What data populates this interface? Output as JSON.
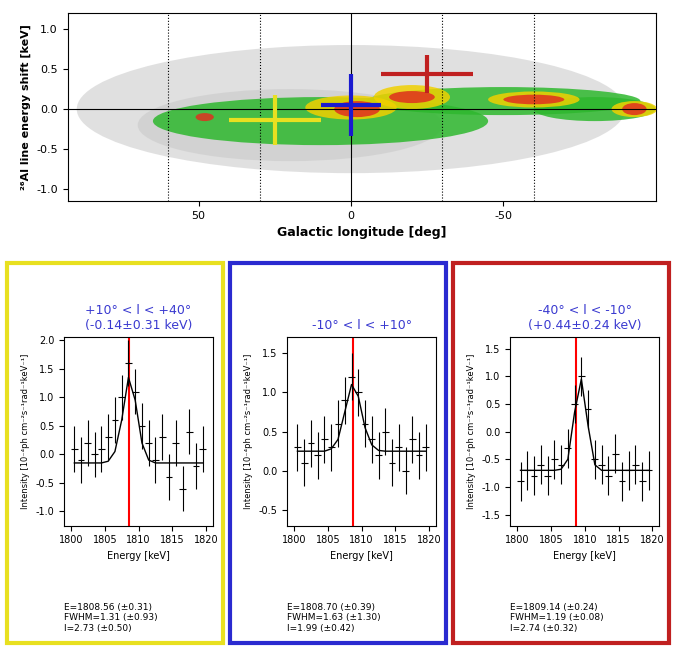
{
  "chart_data": [
    {
      "type": "map",
      "xlabel": "Galactic longitude [deg]",
      "ylabel": "²⁶Al line energy shift [keV]",
      "xlim": [
        93,
        -100
      ],
      "xticks": [
        50,
        0,
        -50
      ],
      "ylim": [
        -1.15,
        1.2
      ],
      "yticks": [
        -1.0,
        -0.5,
        0.0,
        0.5,
        1.0
      ],
      "reference_lines": [
        60,
        30,
        -30,
        -60
      ],
      "emission": {
        "colors": [
          "#c8c8c8",
          "#2eb82e",
          "#f0d000",
          "#e03020"
        ],
        "blobs": [
          {
            "l": 0,
            "shift": 0.0,
            "dl": 180,
            "dshift": 1.6,
            "level": 1
          },
          {
            "l": 20,
            "shift": -0.2,
            "dl": 100,
            "dshift": 0.9,
            "level": 1
          },
          {
            "l": 10,
            "shift": -0.15,
            "dl": 110,
            "dshift": 0.6,
            "level": 2
          },
          {
            "l": -50,
            "shift": 0.1,
            "dl": 90,
            "dshift": 0.35,
            "level": 2
          },
          {
            "l": -80,
            "shift": 0.0,
            "dl": 40,
            "dshift": 0.3,
            "level": 2
          },
          {
            "l": 0,
            "shift": 0.02,
            "dl": 30,
            "dshift": 0.3,
            "level": 3
          },
          {
            "l": -20,
            "shift": 0.15,
            "dl": 25,
            "dshift": 0.3,
            "level": 3
          },
          {
            "l": -60,
            "shift": 0.12,
            "dl": 30,
            "dshift": 0.2,
            "level": 3
          },
          {
            "l": -93,
            "shift": 0.0,
            "dl": 15,
            "dshift": 0.2,
            "level": 3
          },
          {
            "l": -2,
            "shift": 0.0,
            "dl": 15,
            "dshift": 0.2,
            "level": 4
          },
          {
            "l": -20,
            "shift": 0.15,
            "dl": 15,
            "dshift": 0.15,
            "level": 4
          },
          {
            "l": -60,
            "shift": 0.12,
            "dl": 20,
            "dshift": 0.12,
            "level": 4
          },
          {
            "l": -93,
            "shift": 0.0,
            "dl": 8,
            "dshift": 0.15,
            "level": 4
          },
          {
            "l": 48,
            "shift": -0.1,
            "dl": 6,
            "dshift": 0.1,
            "level": 4
          }
        ]
      },
      "series": [
        {
          "color": "#e8e020",
          "l_range": [
            10,
            40
          ],
          "shift": -0.14,
          "shift_error": 0.31
        },
        {
          "color": "#1a1ad0",
          "l_range": [
            -10,
            10
          ],
          "shift": 0.05,
          "shift_error": 0.39
        },
        {
          "color": "#c02020",
          "l_range": [
            -40,
            -10
          ],
          "shift": 0.44,
          "shift_error": 0.24
        }
      ]
    },
    {
      "type": "spectrum",
      "color": "#e8e020",
      "title": "+10° < l < +40°",
      "subtitle": "(-0.14±0.31 keV)",
      "fit_text": [
        "E=1808.56 (±0.31)",
        "FWHM=1.31 (±0.93)",
        "I=2.73 (±0.50)"
      ],
      "xlabel": "Energy [keV]",
      "ylabel": "Intensity [10⁻⁴ph cm⁻²s⁻¹rad⁻¹keV⁻¹]",
      "xlim": [
        1799,
        1821
      ],
      "xticks": [
        1800,
        1805,
        1810,
        1815,
        1820
      ],
      "ylim": [
        -1.25,
        2.05
      ],
      "yticks": [
        -1.0,
        -0.5,
        0.0,
        0.5,
        1.0,
        1.5,
        2.0
      ],
      "reference_energy": 1808.65,
      "x": [
        1800.5,
        1801.5,
        1802.5,
        1803.5,
        1804.5,
        1805.5,
        1806.5,
        1807.5,
        1808.5,
        1809.5,
        1810.5,
        1811.5,
        1812.5,
        1813.5,
        1814.5,
        1815.5,
        1816.5,
        1817.5,
        1818.5,
        1819.5
      ],
      "values": [
        0.1,
        -0.1,
        0.2,
        0.0,
        0.1,
        0.3,
        0.6,
        1.0,
        1.6,
        1.1,
        0.5,
        0.2,
        -0.1,
        0.3,
        -0.4,
        0.2,
        -0.6,
        0.4,
        -0.2,
        0.1
      ],
      "errors": [
        0.4,
        0.4,
        0.4,
        0.4,
        0.4,
        0.4,
        0.4,
        0.4,
        0.4,
        0.4,
        0.4,
        0.4,
        0.4,
        0.4,
        0.4,
        0.4,
        0.4,
        0.4,
        0.4,
        0.4
      ],
      "fit": [
        -0.15,
        -0.15,
        -0.15,
        -0.15,
        -0.15,
        -0.12,
        0.05,
        0.6,
        1.35,
        0.95,
        0.2,
        -0.1,
        -0.15,
        -0.15,
        -0.15,
        -0.15,
        -0.15,
        -0.15,
        -0.15,
        -0.15
      ]
    },
    {
      "type": "spectrum",
      "color": "#2a2ad0",
      "title": "-10° < l < +10°",
      "fit_text": [
        "E=1808.70 (±0.39)",
        "FWHM=1.63 (±1.30)",
        "I=1.99 (±0.42)"
      ],
      "xlabel": "Energy [keV]",
      "ylabel": "Intensity [10⁻⁴ph cm⁻²s⁻¹rad⁻¹keV⁻¹]",
      "xlim": [
        1799,
        1821
      ],
      "xticks": [
        1800,
        1805,
        1810,
        1815,
        1820
      ],
      "ylim": [
        -0.7,
        1.7
      ],
      "yticks": [
        -0.5,
        0.0,
        0.5,
        1.0,
        1.5
      ],
      "reference_energy": 1808.65,
      "x": [
        1800.5,
        1801.5,
        1802.5,
        1803.5,
        1804.5,
        1805.5,
        1806.5,
        1807.5,
        1808.5,
        1809.5,
        1810.5,
        1811.5,
        1812.5,
        1813.5,
        1814.5,
        1815.5,
        1816.5,
        1817.5,
        1818.5,
        1819.5
      ],
      "values": [
        0.3,
        0.1,
        0.35,
        0.2,
        0.4,
        0.3,
        0.6,
        0.9,
        1.2,
        1.0,
        0.6,
        0.4,
        0.2,
        0.5,
        0.1,
        0.3,
        0.0,
        0.4,
        0.2,
        0.3
      ],
      "errors": [
        0.3,
        0.3,
        0.3,
        0.3,
        0.3,
        0.3,
        0.3,
        0.3,
        0.3,
        0.3,
        0.3,
        0.3,
        0.3,
        0.3,
        0.3,
        0.3,
        0.3,
        0.3,
        0.3,
        0.3
      ],
      "fit": [
        0.25,
        0.25,
        0.25,
        0.25,
        0.25,
        0.28,
        0.4,
        0.75,
        1.1,
        0.95,
        0.55,
        0.33,
        0.26,
        0.25,
        0.25,
        0.25,
        0.25,
        0.25,
        0.25,
        0.25
      ]
    },
    {
      "type": "spectrum",
      "color": "#c02020",
      "title": "-40° < l < -10°",
      "subtitle": "(+0.44±0.24 keV)",
      "fit_text": [
        "E=1809.14 (±0.24)",
        "FWHM=1.19 (±0.08)",
        "I=2.74 (±0.32)"
      ],
      "xlabel": "Energy [keV]",
      "ylabel": "Intensity [10⁻⁴ph cm⁻²s⁻¹rad⁻¹keV⁻¹]",
      "xlim": [
        1799,
        1821
      ],
      "xticks": [
        1800,
        1805,
        1810,
        1815,
        1820
      ],
      "ylim": [
        -1.7,
        1.7
      ],
      "yticks": [
        -1.5,
        -1.0,
        -0.5,
        0.0,
        0.5,
        1.0,
        1.5
      ],
      "reference_energy": 1808.65,
      "x": [
        1800.5,
        1801.5,
        1802.5,
        1803.5,
        1804.5,
        1805.5,
        1806.5,
        1807.5,
        1808.5,
        1809.5,
        1810.5,
        1811.5,
        1812.5,
        1813.5,
        1814.5,
        1815.5,
        1816.5,
        1817.5,
        1818.5,
        1819.5
      ],
      "values": [
        -0.9,
        -0.7,
        -0.8,
        -0.6,
        -0.8,
        -0.5,
        -0.6,
        -0.3,
        0.5,
        1.0,
        0.4,
        -0.5,
        -0.6,
        -0.8,
        -0.4,
        -0.9,
        -0.7,
        -0.6,
        -0.9,
        -0.7
      ],
      "errors": [
        0.35,
        0.35,
        0.35,
        0.35,
        0.35,
        0.35,
        0.35,
        0.35,
        0.35,
        0.35,
        0.35,
        0.35,
        0.35,
        0.35,
        0.35,
        0.35,
        0.35,
        0.35,
        0.35,
        0.35
      ],
      "fit": [
        -0.7,
        -0.7,
        -0.7,
        -0.7,
        -0.7,
        -0.7,
        -0.68,
        -0.5,
        0.35,
        0.95,
        0.1,
        -0.6,
        -0.7,
        -0.7,
        -0.7,
        -0.7,
        -0.7,
        -0.7,
        -0.7,
        -0.7
      ]
    }
  ]
}
